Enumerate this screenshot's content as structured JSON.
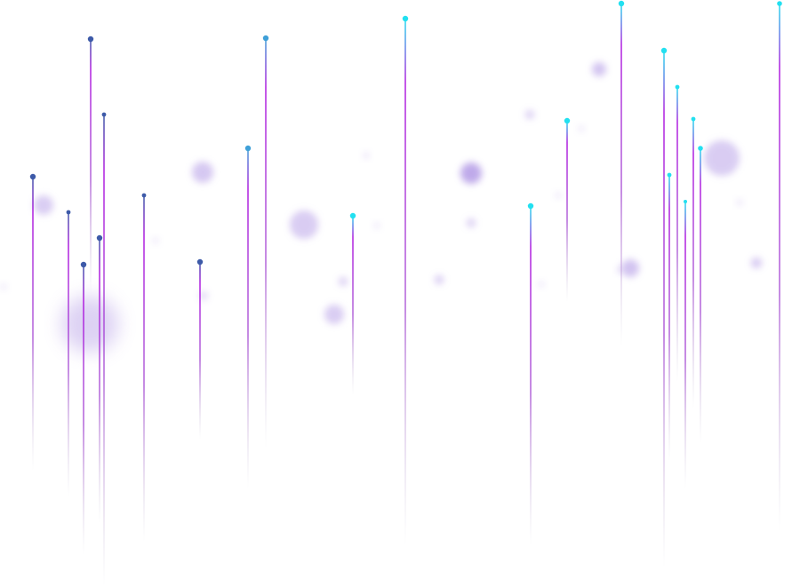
{
  "palette": {
    "background": "#ffffff",
    "line_top_cyan": "#22e0f0",
    "line_top_blue": "#3d5aa8",
    "line_mid_magenta": "#b01ee0",
    "line_fade": "#b8b8c8",
    "bokeh": "#b49be6"
  }
}
